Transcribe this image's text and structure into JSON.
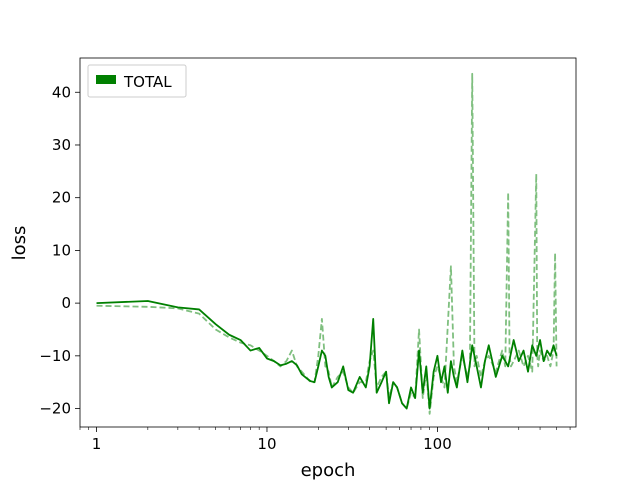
{
  "chart_data": {
    "type": "line",
    "title": "",
    "xlabel": "epoch",
    "ylabel": "loss",
    "xscale": "log",
    "xlim": [
      0.8,
      650
    ],
    "ylim": [
      -23.5,
      46.5
    ],
    "x_ticks": [
      1,
      10,
      100
    ],
    "x_tick_labels": [
      "1",
      "10",
      "100"
    ],
    "y_ticks": [
      -20,
      -10,
      0,
      10,
      20,
      30,
      40
    ],
    "y_tick_labels": [
      "−20",
      "−10",
      "0",
      "10",
      "20",
      "30",
      "40"
    ],
    "grid": false,
    "legend": {
      "position": "top-left",
      "entries": [
        "TOTAL"
      ]
    },
    "colors": {
      "total": "#008000",
      "total_dashed": "#7fbf7f"
    },
    "series": [
      {
        "name": "TOTAL",
        "style": "solid",
        "color": "#008000",
        "x": [
          1,
          2,
          3,
          4,
          5,
          6,
          7,
          8,
          9,
          10,
          11,
          12,
          13,
          14,
          15,
          16,
          17,
          18,
          19,
          20,
          21,
          22,
          23,
          24,
          26,
          28,
          30,
          32,
          35,
          38,
          40,
          42,
          44,
          47,
          50,
          52,
          55,
          58,
          62,
          66,
          70,
          74,
          78,
          82,
          86,
          90,
          95,
          100,
          105,
          110,
          115,
          120,
          125,
          130,
          140,
          150,
          160,
          170,
          180,
          190,
          200,
          220,
          240,
          260,
          280,
          300,
          320,
          340,
          360,
          380,
          400,
          420,
          440,
          460,
          480,
          500
        ],
        "y": [
          0,
          0.4,
          -0.8,
          -1.2,
          -4,
          -6,
          -7,
          -9,
          -8.5,
          -10.5,
          -11,
          -11.8,
          -11.5,
          -11,
          -11.8,
          -13.5,
          -14.2,
          -14.8,
          -15,
          -12,
          -9,
          -10,
          -14,
          -16,
          -15,
          -12,
          -16.5,
          -17,
          -14,
          -16,
          -12,
          -3,
          -17,
          -15,
          -13,
          -19,
          -15,
          -16,
          -19,
          -20,
          -16,
          -18,
          -9,
          -17,
          -12,
          -20,
          -13,
          -10,
          -15,
          -12,
          -17,
          -11,
          -14,
          -16,
          -9,
          -15,
          -8,
          -12,
          -16,
          -11,
          -8,
          -14,
          -10,
          -12,
          -7,
          -11,
          -9,
          -13,
          -8,
          -10,
          -7,
          -11,
          -9,
          -10,
          -8,
          -10
        ]
      },
      {
        "name": "",
        "style": "dashed",
        "color": "#7fbf7f",
        "x": [
          1,
          2,
          3,
          4,
          5,
          6,
          7,
          8,
          9,
          10,
          11,
          12,
          13,
          14,
          15,
          16,
          17,
          18,
          19,
          20,
          21,
          22,
          23,
          24,
          26,
          28,
          30,
          32,
          35,
          38,
          40,
          42,
          44,
          47,
          50,
          52,
          55,
          58,
          62,
          66,
          70,
          74,
          78,
          82,
          86,
          90,
          95,
          100,
          110,
          120,
          125,
          130,
          140,
          150,
          155,
          160,
          165,
          170,
          180,
          190,
          200,
          220,
          240,
          250,
          260,
          265,
          270,
          280,
          300,
          320,
          340,
          360,
          380,
          385,
          390,
          400,
          420,
          440,
          460,
          480,
          490,
          500
        ],
        "y": [
          -0.5,
          -0.7,
          -1,
          -2,
          -5,
          -6.5,
          -7.5,
          -8,
          -9,
          -10,
          -11,
          -12,
          -11,
          -9,
          -12,
          -13,
          -14,
          -15,
          -15,
          -10,
          -3,
          -12,
          -13,
          -16,
          -14,
          -13,
          -16,
          -17,
          -15,
          -15,
          -11,
          -9,
          -16,
          -14,
          -13,
          -18,
          -15,
          -16,
          -19,
          -20,
          -17,
          -18,
          -5,
          -18,
          -13,
          -21,
          -14,
          -12,
          -16,
          7,
          -12,
          -15,
          -10,
          -14,
          -12,
          43.5,
          -12,
          -10,
          -14,
          -11,
          -10,
          -13,
          -9,
          -12,
          21,
          -10,
          -12,
          -11,
          -9,
          -12,
          -10,
          -13,
          24.5,
          -10,
          -12,
          -9,
          -11,
          -10,
          -12,
          -9,
          9.5,
          -12
        ]
      }
    ]
  }
}
